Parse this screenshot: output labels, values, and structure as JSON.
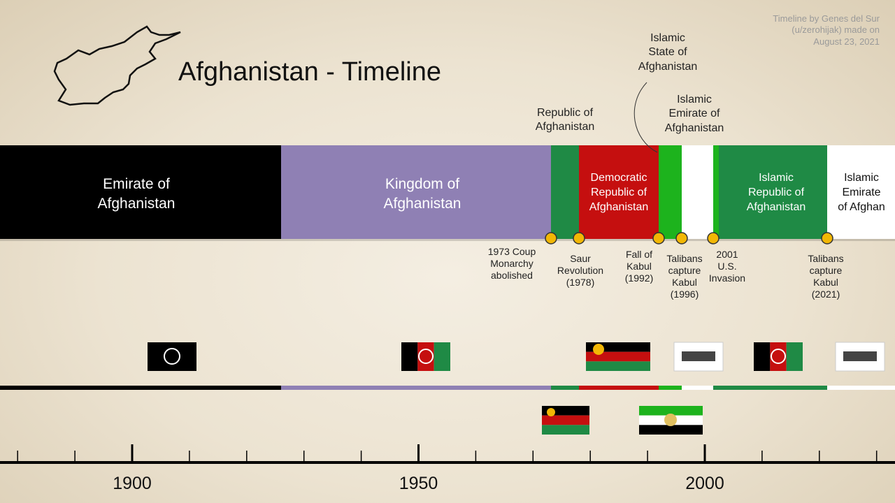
{
  "header": {
    "title": "Afghanistan - Timeline",
    "credit": [
      "Timeline by Genes del Sur",
      "(u/zerohijak) made on",
      "August 23, 2021"
    ]
  },
  "periods": [
    {
      "label": [
        "Emirate of",
        "Afghanistan"
      ]
    },
    {
      "label": [
        "Kingdom of",
        "Afghanistan"
      ]
    },
    {
      "label": [
        "Republic of",
        "Afghanistan"
      ]
    },
    {
      "label": [
        "Democratic",
        "Republic of",
        "Afghanistan"
      ]
    },
    {
      "label": [
        "Islamic",
        "State of",
        "Afghanistan"
      ]
    },
    {
      "label": [
        "Islamic",
        "Emirate of",
        "Afghanistan"
      ]
    },
    {
      "label": [
        "Islamic",
        "Republic of",
        "Afghanistan"
      ]
    },
    {
      "label": [
        "Islamic",
        "Emirate",
        "of Afghan"
      ]
    }
  ],
  "events": [
    {
      "label": [
        "1973 Coup",
        "Monarchy",
        "abolished"
      ]
    },
    {
      "label": [
        "Saur",
        "Revolution",
        "(1978)"
      ]
    },
    {
      "label": [
        "Fall of",
        "Kabul",
        "(1992)"
      ]
    },
    {
      "label": [
        "Talibans",
        "capture",
        "Kabul",
        "(1996)"
      ]
    },
    {
      "label": [
        "2001",
        "U.S.",
        "Invasion"
      ]
    },
    {
      "label": [
        "Talibans",
        "capture",
        "Kabul",
        "(2021)"
      ]
    }
  ],
  "axis": {
    "ticks": [
      1900,
      1950,
      2000
    ]
  }
}
